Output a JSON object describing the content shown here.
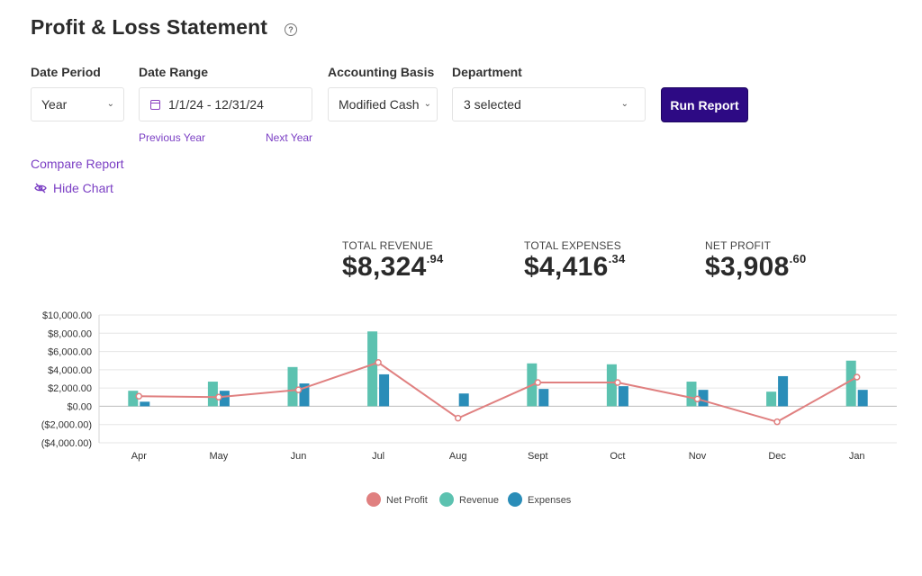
{
  "header": {
    "title": "Profit & Loss Statement",
    "help_icon": "?"
  },
  "filters": {
    "date_period": {
      "label": "Date Period",
      "value": "Year"
    },
    "date_range": {
      "label": "Date Range",
      "value": "1/1/24 - 12/31/24",
      "prev_link": "Previous Year",
      "next_link": "Next Year"
    },
    "accounting_basis": {
      "label": "Accounting Basis",
      "value": "Modified Cash"
    },
    "department": {
      "label": "Department",
      "value": "3 selected"
    },
    "run_button": "Run Report"
  },
  "links": {
    "compare_report": "Compare Report",
    "hide_chart": "Hide Chart"
  },
  "summary": {
    "total_revenue": {
      "label": "TOTAL REVENUE",
      "dollars": "$8,324",
      "cents": ".94"
    },
    "total_expenses": {
      "label": "TOTAL EXPENSES",
      "dollars": "$4,416",
      "cents": ".34"
    },
    "net_profit": {
      "label": "NET PROFIT",
      "dollars": "$3,908",
      "cents": ".60"
    }
  },
  "colors": {
    "revenue": "#5cc2b0",
    "expenses": "#2a8db8",
    "net_profit": "#e08080",
    "accent": "#7b3fc4",
    "button": "#2d0a84"
  },
  "chart_data": {
    "type": "bar",
    "categories": [
      "Apr",
      "May",
      "Jun",
      "Jul",
      "Aug",
      "Sept",
      "Oct",
      "Nov",
      "Dec",
      "Jan"
    ],
    "y_ticks": [
      10000,
      8000,
      6000,
      4000,
      2000,
      0,
      -2000,
      -4000
    ],
    "y_tick_labels": [
      "$10,000.00",
      "$8,000.00",
      "$6,000.00",
      "$4,000.00",
      "$2,000.00",
      "$0.00",
      "($2,000.00)",
      "($4,000.00)"
    ],
    "ylim": [
      -4000,
      10000
    ],
    "series": [
      {
        "name": "Revenue",
        "type": "bar",
        "values": [
          1700,
          2700,
          4300,
          8200,
          0,
          4700,
          4600,
          2700,
          1600,
          5000
        ]
      },
      {
        "name": "Expenses",
        "type": "bar",
        "values": [
          500,
          1700,
          2500,
          3500,
          1400,
          1900,
          2200,
          1800,
          3300,
          1800
        ]
      },
      {
        "name": "Net Profit",
        "type": "line",
        "values": [
          1100,
          1000,
          1800,
          4800,
          -1300,
          2600,
          2600,
          800,
          -1700,
          3200
        ]
      }
    ],
    "legend": [
      "Net Profit",
      "Revenue",
      "Expenses"
    ],
    "legend_position": "bottom-center",
    "grid": true
  }
}
